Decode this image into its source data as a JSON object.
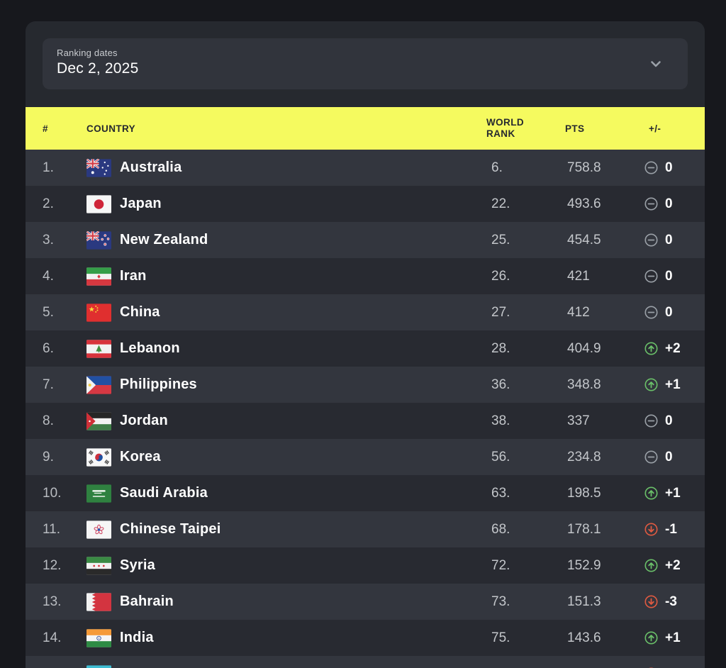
{
  "ranking_dates": {
    "label": "Ranking dates",
    "value": "Dec 2, 2025"
  },
  "table": {
    "headers": {
      "rank": "#",
      "country": "COUNTRY",
      "world_rank": "WORLD RANK",
      "pts": "PTS",
      "change": "+/-"
    },
    "rows": [
      {
        "rank": "1.",
        "country": "Australia",
        "flag": "au",
        "world_rank": "6.",
        "pts": "758.8",
        "trend": "same",
        "change": "0"
      },
      {
        "rank": "2.",
        "country": "Japan",
        "flag": "jp",
        "world_rank": "22.",
        "pts": "493.6",
        "trend": "same",
        "change": "0"
      },
      {
        "rank": "3.",
        "country": "New Zealand",
        "flag": "nz",
        "world_rank": "25.",
        "pts": "454.5",
        "trend": "same",
        "change": "0"
      },
      {
        "rank": "4.",
        "country": "Iran",
        "flag": "ir",
        "world_rank": "26.",
        "pts": "421",
        "trend": "same",
        "change": "0"
      },
      {
        "rank": "5.",
        "country": "China",
        "flag": "cn",
        "world_rank": "27.",
        "pts": "412",
        "trend": "same",
        "change": "0"
      },
      {
        "rank": "6.",
        "country": "Lebanon",
        "flag": "lb",
        "world_rank": "28.",
        "pts": "404.9",
        "trend": "up",
        "change": "+2"
      },
      {
        "rank": "7.",
        "country": "Philippines",
        "flag": "ph",
        "world_rank": "36.",
        "pts": "348.8",
        "trend": "up",
        "change": "+1"
      },
      {
        "rank": "8.",
        "country": "Jordan",
        "flag": "jo",
        "world_rank": "38.",
        "pts": "337",
        "trend": "same",
        "change": "0"
      },
      {
        "rank": "9.",
        "country": "Korea",
        "flag": "kr",
        "world_rank": "56.",
        "pts": "234.8",
        "trend": "same",
        "change": "0"
      },
      {
        "rank": "10.",
        "country": "Saudi Arabia",
        "flag": "sa",
        "world_rank": "63.",
        "pts": "198.5",
        "trend": "up",
        "change": "+1"
      },
      {
        "rank": "11.",
        "country": "Chinese Taipei",
        "flag": "tpe",
        "world_rank": "68.",
        "pts": "178.1",
        "trend": "down",
        "change": "-1"
      },
      {
        "rank": "12.",
        "country": "Syria",
        "flag": "sy",
        "world_rank": "72.",
        "pts": "152.9",
        "trend": "up",
        "change": "+2"
      },
      {
        "rank": "13.",
        "country": "Bahrain",
        "flag": "bh",
        "world_rank": "73.",
        "pts": "151.3",
        "trend": "down",
        "change": "-3"
      },
      {
        "rank": "14.",
        "country": "India",
        "flag": "in",
        "world_rank": "75.",
        "pts": "143.6",
        "trend": "up",
        "change": "+1"
      },
      {
        "rank": "",
        "country": "",
        "flag": "kz",
        "world_rank": "",
        "pts": "",
        "trend": "down",
        "change": ""
      }
    ]
  },
  "colors": {
    "accent_yellow": "#f5fa5f",
    "trend_up": "#6abf69",
    "trend_down": "#e05a41",
    "trend_same": "#9aa0a7"
  }
}
